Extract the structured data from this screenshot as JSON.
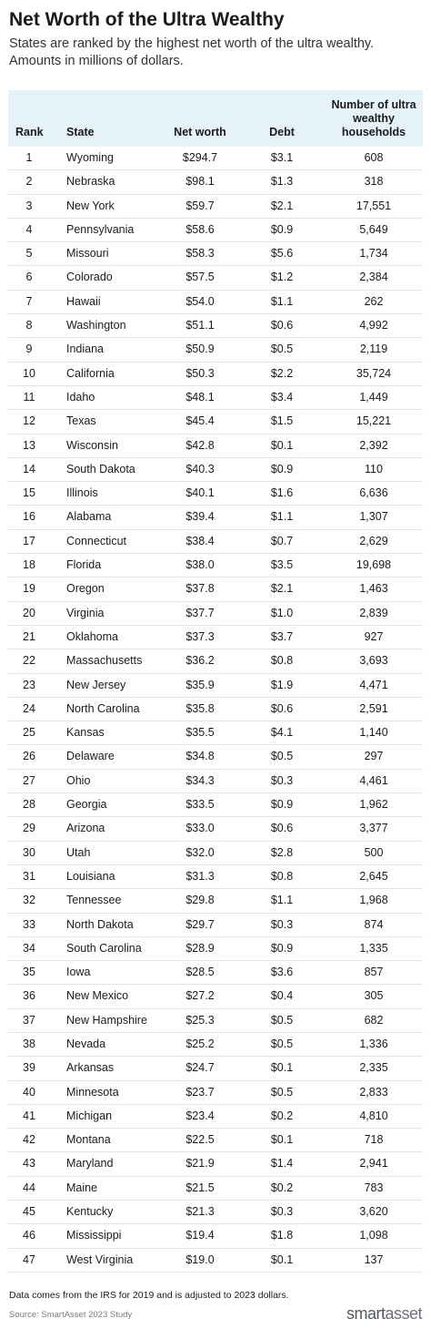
{
  "title": "Net Worth of the Ultra Wealthy",
  "subtitle": "States are ranked by the highest net worth of the ultra wealthy. Amounts in millions of dollars.",
  "footnote": "Data comes from the IRS for 2019 and is adjusted to 2023 dollars.",
  "source": "Source: SmartAsset 2023 Study",
  "logo": {
    "part1": "smart",
    "part2": "asset"
  },
  "colors": {
    "header_bg": "#e6f2fa",
    "row_border": "#dde3e8"
  },
  "chart_data": {
    "type": "table",
    "title": "Net Worth of the Ultra Wealthy",
    "columns": [
      "Rank",
      "State",
      "Net worth",
      "Debt",
      "Number of ultra wealthy households"
    ],
    "rows": [
      [
        "1",
        "Wyoming",
        "$294.7",
        "$3.1",
        "608"
      ],
      [
        "2",
        "Nebraska",
        "$98.1",
        "$1.3",
        "318"
      ],
      [
        "3",
        "New York",
        "$59.7",
        "$2.1",
        "17,551"
      ],
      [
        "4",
        "Pennsylvania",
        "$58.6",
        "$0.9",
        "5,649"
      ],
      [
        "5",
        "Missouri",
        "$58.3",
        "$5.6",
        "1,734"
      ],
      [
        "6",
        "Colorado",
        "$57.5",
        "$1.2",
        "2,384"
      ],
      [
        "7",
        "Hawaii",
        "$54.0",
        "$1.1",
        "262"
      ],
      [
        "8",
        "Washington",
        "$51.1",
        "$0.6",
        "4,992"
      ],
      [
        "9",
        "Indiana",
        "$50.9",
        "$0.5",
        "2,119"
      ],
      [
        "10",
        "California",
        "$50.3",
        "$2.2",
        "35,724"
      ],
      [
        "11",
        "Idaho",
        "$48.1",
        "$3.4",
        "1,449"
      ],
      [
        "12",
        "Texas",
        "$45.4",
        "$1.5",
        "15,221"
      ],
      [
        "13",
        "Wisconsin",
        "$42.8",
        "$0.1",
        "2,392"
      ],
      [
        "14",
        "South Dakota",
        "$40.3",
        "$0.9",
        "110"
      ],
      [
        "15",
        "Illinois",
        "$40.1",
        "$1.6",
        "6,636"
      ],
      [
        "16",
        "Alabama",
        "$39.4",
        "$1.1",
        "1,307"
      ],
      [
        "17",
        "Connecticut",
        "$38.4",
        "$0.7",
        "2,629"
      ],
      [
        "18",
        "Florida",
        "$38.0",
        "$3.5",
        "19,698"
      ],
      [
        "19",
        "Oregon",
        "$37.8",
        "$2.1",
        "1,463"
      ],
      [
        "20",
        "Virginia",
        "$37.7",
        "$1.0",
        "2,839"
      ],
      [
        "21",
        "Oklahoma",
        "$37.3",
        "$3.7",
        "927"
      ],
      [
        "22",
        "Massachusetts",
        "$36.2",
        "$0.8",
        "3,693"
      ],
      [
        "23",
        "New Jersey",
        "$35.9",
        "$1.9",
        "4,471"
      ],
      [
        "24",
        "North Carolina",
        "$35.8",
        "$0.6",
        "2,591"
      ],
      [
        "25",
        "Kansas",
        "$35.5",
        "$4.1",
        "1,140"
      ],
      [
        "26",
        "Delaware",
        "$34.8",
        "$0.5",
        "297"
      ],
      [
        "27",
        "Ohio",
        "$34.3",
        "$0.3",
        "4,461"
      ],
      [
        "28",
        "Georgia",
        "$33.5",
        "$0.9",
        "1,962"
      ],
      [
        "29",
        "Arizona",
        "$33.0",
        "$0.6",
        "3,377"
      ],
      [
        "30",
        "Utah",
        "$32.0",
        "$2.8",
        "500"
      ],
      [
        "31",
        "Louisiana",
        "$31.3",
        "$0.8",
        "2,645"
      ],
      [
        "32",
        "Tennessee",
        "$29.8",
        "$1.1",
        "1,968"
      ],
      [
        "33",
        "North Dakota",
        "$29.7",
        "$0.3",
        "874"
      ],
      [
        "34",
        "South Carolina",
        "$28.9",
        "$0.9",
        "1,335"
      ],
      [
        "35",
        "Iowa",
        "$28.5",
        "$3.6",
        "857"
      ],
      [
        "36",
        "New Mexico",
        "$27.2",
        "$0.4",
        "305"
      ],
      [
        "37",
        "New Hampshire",
        "$25.3",
        "$0.5",
        "682"
      ],
      [
        "38",
        "Nevada",
        "$25.2",
        "$0.5",
        "1,336"
      ],
      [
        "39",
        "Arkansas",
        "$24.7",
        "$0.1",
        "2,335"
      ],
      [
        "40",
        "Minnesota",
        "$23.7",
        "$0.5",
        "2,833"
      ],
      [
        "41",
        "Michigan",
        "$23.4",
        "$0.2",
        "4,810"
      ],
      [
        "42",
        "Montana",
        "$22.5",
        "$0.1",
        "718"
      ],
      [
        "43",
        "Maryland",
        "$21.9",
        "$1.4",
        "2,941"
      ],
      [
        "44",
        "Maine",
        "$21.5",
        "$0.2",
        "783"
      ],
      [
        "45",
        "Kentucky",
        "$21.3",
        "$0.3",
        "3,620"
      ],
      [
        "46",
        "Mississippi",
        "$19.4",
        "$1.8",
        "1,098"
      ],
      [
        "47",
        "West Virginia",
        "$19.0",
        "$0.1",
        "137"
      ]
    ]
  }
}
